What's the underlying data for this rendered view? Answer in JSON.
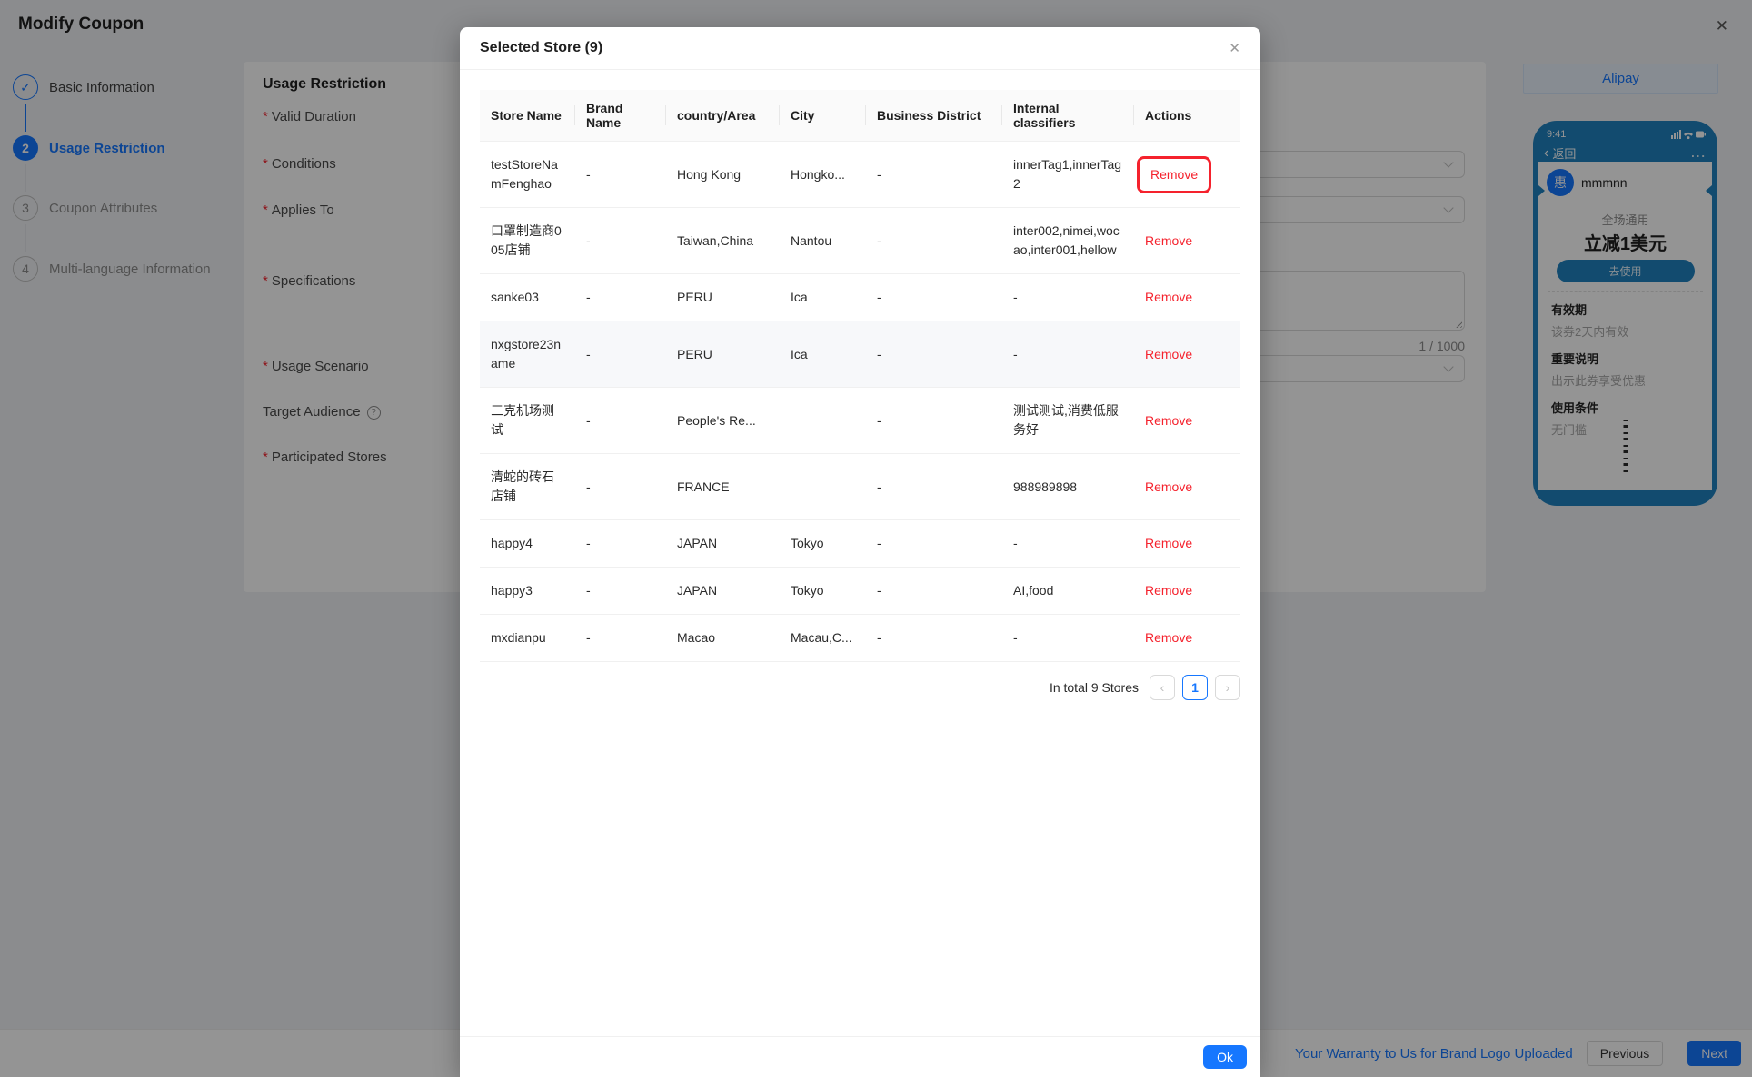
{
  "colors": {
    "accent": "#1677ff",
    "danger": "#f5222d",
    "phone_blue": "#1f82c0"
  },
  "icons": {
    "close": "✕",
    "check": "✓",
    "help": "?",
    "prev": "‹",
    "next": "›",
    "back": "‹",
    "ellipsis": "...",
    "chevron_down": "chevron-down"
  },
  "page": {
    "title": "Modify Coupon",
    "steps": [
      {
        "num": "1",
        "label": "Basic Information",
        "state": "finish"
      },
      {
        "num": "2",
        "label": "Usage Restriction",
        "state": "active"
      },
      {
        "num": "3",
        "label": "Coupon Attributes",
        "state": "wait"
      },
      {
        "num": "4",
        "label": "Multi-language Information",
        "state": "wait"
      }
    ],
    "form": {
      "heading": "Usage Restriction",
      "fields": [
        {
          "label": "Valid Duration",
          "required": true,
          "help": false
        },
        {
          "label": "Conditions",
          "required": true,
          "help": false
        },
        {
          "label": "Applies To",
          "required": true,
          "help": false
        },
        {
          "label": "Specifications",
          "required": true,
          "help": false
        },
        {
          "label": "Usage Scenario",
          "required": true,
          "help": false
        },
        {
          "label": "Target Audience",
          "required": false,
          "help": true
        },
        {
          "label": "Participated Stores",
          "required": true,
          "help": false
        }
      ],
      "char_counter": "1 / 1000"
    },
    "footer": {
      "warranty_link": "Your Warranty to Us for Brand Logo Uploaded",
      "previous_label": "Previous",
      "next_label": "Next"
    }
  },
  "preview": {
    "tab_label": "Alipay",
    "phone": {
      "time": "9:41",
      "back_label": "返回",
      "merchant": "mmmnn",
      "merchant_icon": "惠",
      "scope": "全场通用",
      "amount": "立减1美元",
      "use_button": "去使用",
      "sections": [
        {
          "title": "有效期",
          "desc": "该券2天内有效"
        },
        {
          "title": "重要说明",
          "desc": "出示此券享受优惠"
        },
        {
          "title": "使用条件",
          "desc": "无门槛"
        }
      ]
    }
  },
  "modal": {
    "title": "Selected Store (9)",
    "table": {
      "columns": [
        "Store Name",
        "Brand Name",
        "country/Area",
        "City",
        "Business District",
        "Internal classifiers",
        "Actions"
      ],
      "action_label": "Remove",
      "rows": [
        {
          "store": "testStoreNamFenghao",
          "brand": "-",
          "country": "Hong Kong",
          "city": "Hongko...",
          "district": "-",
          "classifiers": "innerTag1,innerTag2",
          "highlight": true,
          "hover": false
        },
        {
          "store": "口罩制造商005店铺",
          "brand": "-",
          "country": "Taiwan,China",
          "city": "Nantou",
          "district": "-",
          "classifiers": "inter002,nimei,wocao,inter001,hellow",
          "highlight": false,
          "hover": false
        },
        {
          "store": "sanke03",
          "brand": "-",
          "country": "PERU",
          "city": "Ica",
          "district": "-",
          "classifiers": "-",
          "highlight": false,
          "hover": false
        },
        {
          "store": "nxgstore23name",
          "brand": "-",
          "country": "PERU",
          "city": "Ica",
          "district": "-",
          "classifiers": "-",
          "highlight": false,
          "hover": true
        },
        {
          "store": "三克机场测试",
          "brand": "-",
          "country": "People's Re...",
          "city": "",
          "district": "-",
          "classifiers": "测试测试,消费低服务好",
          "highlight": false,
          "hover": false
        },
        {
          "store": "清蛇的砖石店铺",
          "brand": "-",
          "country": "FRANCE",
          "city": "",
          "district": "-",
          "classifiers": "988989898",
          "highlight": false,
          "hover": false
        },
        {
          "store": "happy4",
          "brand": "-",
          "country": "JAPAN",
          "city": "Tokyo",
          "district": "-",
          "classifiers": "-",
          "highlight": false,
          "hover": false
        },
        {
          "store": "happy3",
          "brand": "-",
          "country": "JAPAN",
          "city": "Tokyo",
          "district": "-",
          "classifiers": "AI,food",
          "highlight": false,
          "hover": false
        },
        {
          "store": "mxdianpu",
          "brand": "-",
          "country": "Macao",
          "city": "Macau,C...",
          "district": "-",
          "classifiers": "-",
          "highlight": false,
          "hover": false
        }
      ]
    },
    "pagination": {
      "total_text": "In total 9 Stores",
      "page": "1"
    },
    "ok_label": "Ok"
  }
}
